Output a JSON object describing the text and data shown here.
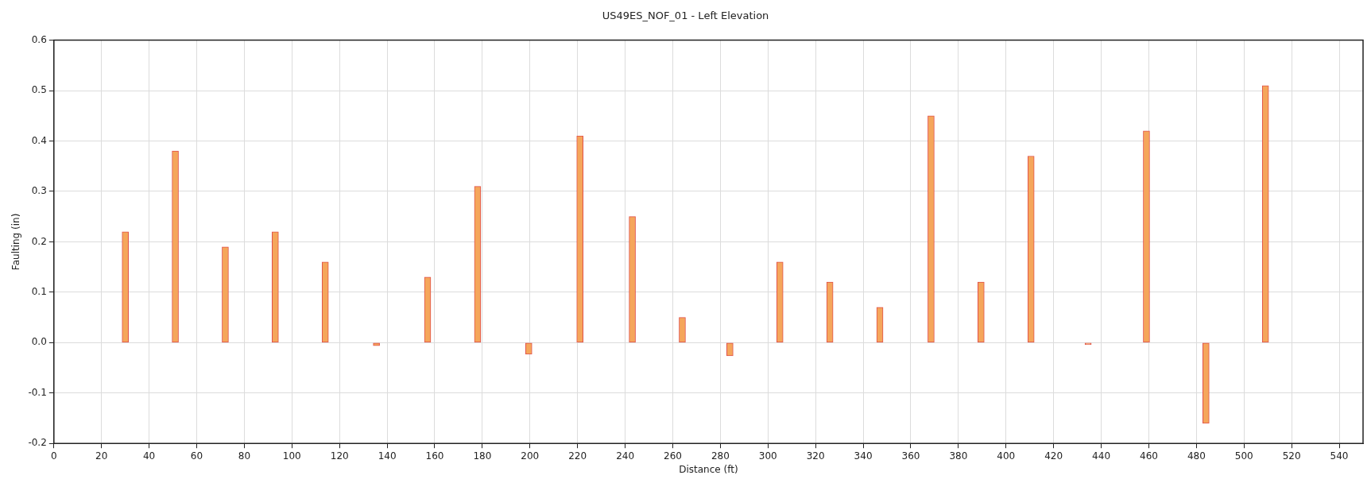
{
  "chart_data": {
    "type": "bar",
    "title": "US49ES_NOF_01 - Left Elevation",
    "xlabel": "Distance (ft)",
    "ylabel": "Faulting (in)",
    "x": [
      30,
      51,
      72,
      93,
      114,
      135.5,
      157,
      178,
      199.5,
      221,
      243,
      264,
      284,
      305,
      326,
      347,
      368.5,
      389.5,
      410.5,
      434.5,
      459,
      484,
      509
    ],
    "series": [
      {
        "color": "#f5a65b",
        "values": [
          0.22,
          0.38,
          0.19,
          0.22,
          0.16,
          -0.006,
          0.13,
          0.31,
          -0.023,
          0.41,
          0.25,
          0.05,
          -0.026,
          0.16,
          0.12,
          0.07,
          0.45,
          0.12,
          0.37,
          -0.004,
          0.42,
          -0.16,
          0.51
        ]
      }
    ],
    "xlim": [
      0,
      550
    ],
    "xticks": [
      0,
      20,
      40,
      60,
      80,
      100,
      120,
      140,
      160,
      180,
      200,
      220,
      240,
      260,
      280,
      300,
      320,
      340,
      360,
      380,
      400,
      420,
      440,
      460,
      480,
      500,
      520,
      540
    ],
    "ylim": [
      -0.2,
      0.6
    ],
    "yticks": [
      {
        "value": -0.2,
        "label": "-0.2"
      },
      {
        "value": -0.1,
        "label": "-0.1"
      },
      {
        "value": 0,
        "label": "0.0"
      },
      {
        "value": 0.1,
        "label": "0.1"
      },
      {
        "value": 0.2,
        "label": "0.2"
      },
      {
        "value": 0.3,
        "label": "0.3"
      },
      {
        "value": 0.4,
        "label": "0.4"
      },
      {
        "value": 0.5,
        "label": "0.5"
      },
      {
        "value": 0.6,
        "label": "0.6"
      }
    ],
    "grid": true,
    "legend": false
  }
}
